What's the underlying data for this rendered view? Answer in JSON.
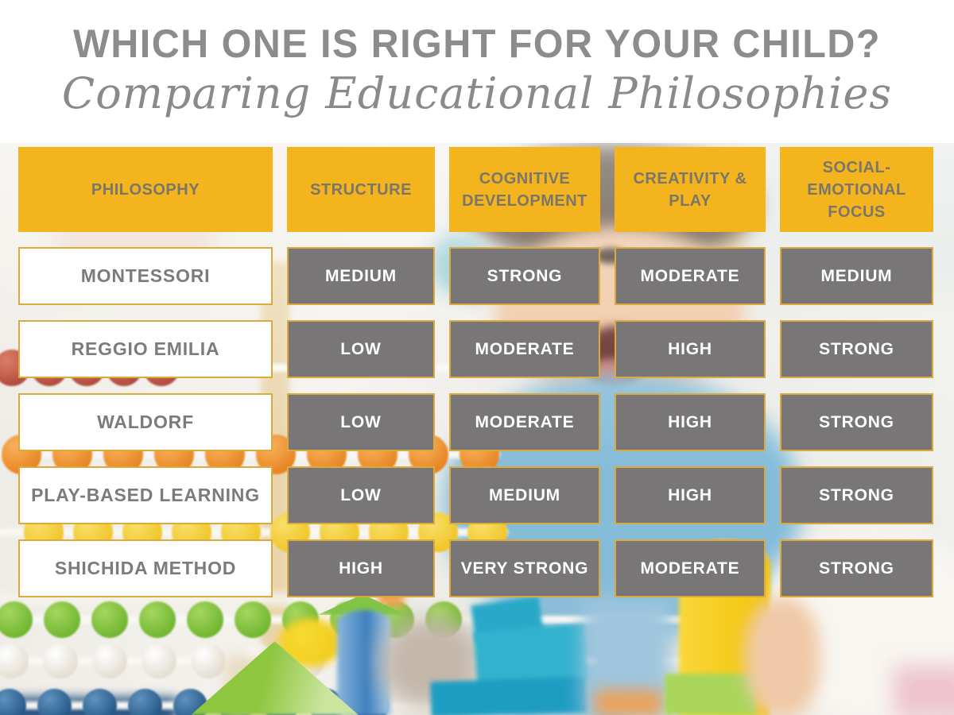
{
  "header": {
    "title": "WHICH ONE IS RIGHT FOR YOUR CHILD?",
    "subtitle": "Comparing Educational Philosophies"
  },
  "table": {
    "columns": [
      "PHILOSOPHY",
      "STRUCTURE",
      "COGNITIVE DEVELOPMENT",
      "CREATIVITY & PLAY",
      "SOCIAL-EMOTIONAL FOCUS"
    ],
    "rows": [
      {
        "philosophy": "MONTESSORI",
        "values": [
          "MEDIUM",
          "STRONG",
          "MODERATE",
          "MEDIUM"
        ]
      },
      {
        "philosophy": "REGGIO EMILIA",
        "values": [
          "LOW",
          "MODERATE",
          "HIGH",
          "STRONG"
        ]
      },
      {
        "philosophy": "WALDORF",
        "values": [
          "LOW",
          "MODERATE",
          "HIGH",
          "STRONG"
        ]
      },
      {
        "philosophy": "PLAY-BASED LEARNING",
        "values": [
          "LOW",
          "MEDIUM",
          "HIGH",
          "STRONG"
        ]
      },
      {
        "philosophy": "SHICHIDA METHOD",
        "values": [
          "HIGH",
          "VERY STRONG",
          "MODERATE",
          "STRONG"
        ]
      }
    ]
  },
  "chart_data": {
    "type": "table",
    "title": "WHICH ONE IS RIGHT FOR YOUR CHILD?",
    "subtitle": "Comparing Educational Philosophies",
    "columns": [
      "PHILOSOPHY",
      "STRUCTURE",
      "COGNITIVE DEVELOPMENT",
      "CREATIVITY & PLAY",
      "SOCIAL-EMOTIONAL FOCUS"
    ],
    "rows": [
      [
        "MONTESSORI",
        "MEDIUM",
        "STRONG",
        "MODERATE",
        "MEDIUM"
      ],
      [
        "REGGIO EMILIA",
        "LOW",
        "MODERATE",
        "HIGH",
        "STRONG"
      ],
      [
        "WALDORF",
        "LOW",
        "MODERATE",
        "HIGH",
        "STRONG"
      ],
      [
        "PLAY-BASED LEARNING",
        "LOW",
        "MEDIUM",
        "HIGH",
        "STRONG"
      ],
      [
        "SHICHIDA METHOD",
        "HIGH",
        "VERY STRONG",
        "MODERATE",
        "STRONG"
      ]
    ]
  },
  "colors": {
    "accent_yellow": "#F3B41D",
    "gold_border": "#DCA93C",
    "rating_cell_gray": "#787676",
    "rating_text": "#FFFFFF",
    "header_text_on_gold": "#7A766B",
    "philosophy_text": "#7B7B79",
    "title_gray": "#8C8C8C"
  }
}
